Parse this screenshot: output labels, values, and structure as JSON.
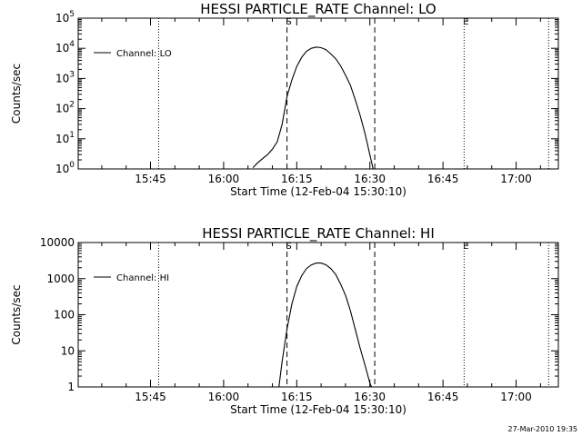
{
  "chart_data": [
    {
      "type": "line",
      "title": "HESSI PARTICLE_RATE Channel: LO",
      "xlabel": "Start Time (12-Feb-04 15:30:10)",
      "ylabel": "Counts/sec",
      "yscale": "log",
      "ylim": [
        1,
        100000
      ],
      "xlim": [
        "15:30:10",
        "17:08:40"
      ],
      "x_ticks": [
        "15:45",
        "16:00",
        "16:15",
        "16:30",
        "16:45",
        "17:00"
      ],
      "y_ticks": [
        {
          "value": 1,
          "base": "10",
          "exp": "0"
        },
        {
          "value": 10,
          "base": "10",
          "exp": "1"
        },
        {
          "value": 100,
          "base": "10",
          "exp": "2"
        },
        {
          "value": 1000,
          "base": "10",
          "exp": "3"
        },
        {
          "value": 10000,
          "base": "10",
          "exp": "4"
        },
        {
          "value": 100000,
          "base": "10",
          "exp": "5"
        }
      ],
      "legend": {
        "position": "top-left",
        "entries": [
          "Channel: LO"
        ]
      },
      "markers": [
        {
          "label": "S",
          "time": "16:13:00",
          "style": "dashed"
        },
        {
          "label": "",
          "time": "16:31:00",
          "style": "dashed"
        },
        {
          "label": "",
          "time": "15:46:40",
          "style": "dotted"
        },
        {
          "label": "E",
          "time": "16:49:20",
          "style": "dotted"
        },
        {
          "label": "",
          "time": "17:06:40",
          "style": "dotted"
        }
      ],
      "series": [
        {
          "name": "Channel: LO",
          "x": [
            "16:06:00",
            "16:07:00",
            "16:08:00",
            "16:09:00",
            "16:10:00",
            "16:11:00",
            "16:12:00",
            "16:13:00",
            "16:14:00",
            "16:15:00",
            "16:16:00",
            "16:17:00",
            "16:18:00",
            "16:19:00",
            "16:20:00",
            "16:21:00",
            "16:22:00",
            "16:23:00",
            "16:24:00",
            "16:25:00",
            "16:26:00",
            "16:27:00",
            "16:28:00",
            "16:29:00",
            "16:30:00",
            "16:30:40"
          ],
          "y": [
            1.1,
            1.6,
            2.2,
            3,
            4.5,
            8,
            30,
            250,
            900,
            2500,
            5000,
            8000,
            10000,
            11000,
            10500,
            9000,
            6500,
            4500,
            2600,
            1300,
            600,
            200,
            60,
            15,
            3,
            1
          ]
        }
      ]
    },
    {
      "type": "line",
      "title": "HESSI PARTICLE_RATE Channel: HI",
      "xlabel": "Start Time (12-Feb-04 15:30:10)",
      "ylabel": "Counts/sec",
      "yscale": "log",
      "ylim": [
        1,
        10000
      ],
      "xlim": [
        "15:30:10",
        "17:08:40"
      ],
      "x_ticks": [
        "15:45",
        "16:00",
        "16:15",
        "16:30",
        "16:45",
        "17:00"
      ],
      "y_ticks": [
        {
          "value": 1,
          "label": "1"
        },
        {
          "value": 10,
          "label": "10"
        },
        {
          "value": 100,
          "label": "100"
        },
        {
          "value": 1000,
          "label": "1000"
        },
        {
          "value": 10000,
          "label": "10000"
        }
      ],
      "legend": {
        "position": "top-left",
        "entries": [
          "Channel: HI"
        ]
      },
      "markers": [
        {
          "label": "S",
          "time": "16:13:00",
          "style": "dashed"
        },
        {
          "label": "",
          "time": "16:31:00",
          "style": "dashed"
        },
        {
          "label": "",
          "time": "15:46:40",
          "style": "dotted"
        },
        {
          "label": "E",
          "time": "16:49:20",
          "style": "dotted"
        },
        {
          "label": "",
          "time": "17:06:40",
          "style": "dotted"
        }
      ],
      "series": [
        {
          "name": "Channel: HI",
          "x": [
            "16:11:20",
            "16:12:00",
            "16:13:00",
            "16:14:00",
            "16:15:00",
            "16:16:00",
            "16:17:00",
            "16:18:00",
            "16:19:00",
            "16:20:00",
            "16:21:00",
            "16:22:00",
            "16:23:00",
            "16:24:00",
            "16:25:00",
            "16:26:00",
            "16:27:00",
            "16:28:00",
            "16:29:00",
            "16:30:00",
            "16:30:20"
          ],
          "y": [
            1,
            5,
            40,
            200,
            600,
            1200,
            1900,
            2400,
            2700,
            2700,
            2400,
            1900,
            1300,
            700,
            350,
            130,
            40,
            12,
            4,
            1.3,
            1
          ]
        }
      ]
    }
  ],
  "footer": {
    "timestamp": "27-Mar-2010 19:35"
  }
}
